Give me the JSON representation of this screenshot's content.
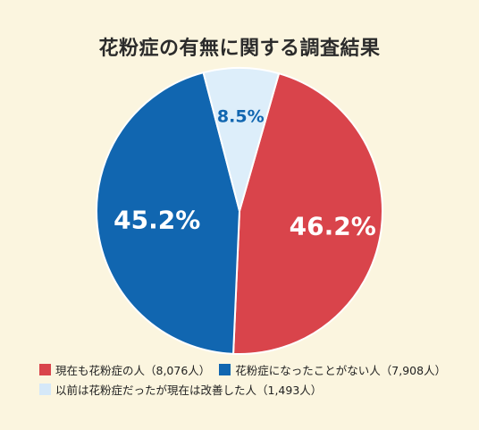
{
  "chart_data": {
    "type": "pie",
    "title": "花粉症の有無に関する調査結果",
    "slices": [
      {
        "label": "現在も花粉症の人（8,076人）",
        "value": 46.2,
        "value_label": "46.2%",
        "color": "#d9444b",
        "label_color": "#ffffff"
      },
      {
        "label": "花粉症になったことがない人（7,908人）",
        "value": 45.2,
        "value_label": "45.2%",
        "color": "#1166b0",
        "label_color": "#ffffff"
      },
      {
        "label": "以前は花粉症だったが現在は改善した人（1,493人）",
        "value": 8.5,
        "value_label": "8.5%",
        "color": "#ddeefa",
        "label_color": "#1166b0"
      }
    ],
    "start_angle_deg": 16,
    "direction": "clockwise",
    "legend_position": "bottom"
  },
  "background_color": "#fbf5df"
}
